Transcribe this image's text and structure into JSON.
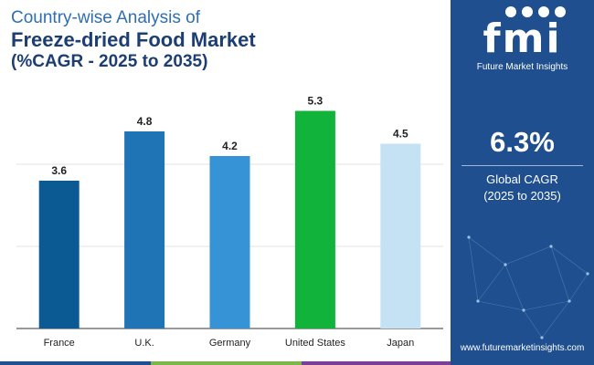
{
  "title": {
    "line1": "Country-wise Analysis of",
    "line2": "Freeze-dried Food Market",
    "line3": "(%CAGR - 2025 to 2035)"
  },
  "chart_data": {
    "type": "bar",
    "categories": [
      "France",
      "U.K.",
      "Germany",
      "United States",
      "Japan"
    ],
    "values": [
      3.6,
      4.8,
      4.2,
      5.3,
      4.5
    ],
    "value_labels": [
      "3.6",
      "4.8",
      "4.2",
      "5.3",
      "4.5"
    ],
    "bar_colors": [
      "#0b5a93",
      "#1f74b6",
      "#3593d6",
      "#11b33a",
      "#c4e2f4"
    ],
    "title": "Country-wise Analysis of Freeze-dried Food Market (%CAGR - 2025 to 2035)",
    "xlabel": "",
    "ylabel": "",
    "ylim": [
      0,
      6
    ],
    "grid": true
  },
  "panel": {
    "logo_text": "fmi",
    "logo_subtitle": "Future Market Insights",
    "cagr_value": "6.3%",
    "cagr_label": "Global CAGR",
    "cagr_period": "(2025 to 2035)",
    "website": "www.futuremarketinsights.com"
  },
  "colors": {
    "panel_bg": "#1f4f8e",
    "title_accent": "#2f6eb5",
    "title_dark": "#1d3e73",
    "bottom_bar": [
      "#1f4f8e",
      "#7ab648",
      "#7b3f98"
    ]
  }
}
